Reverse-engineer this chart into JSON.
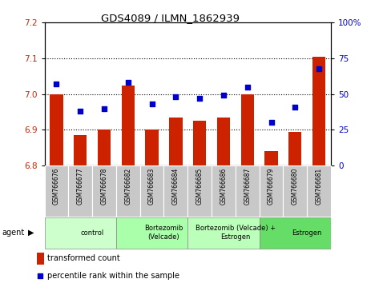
{
  "title": "GDS4089 / ILMN_1862939",
  "samples": [
    "GSM766676",
    "GSM766677",
    "GSM766678",
    "GSM766682",
    "GSM766683",
    "GSM766684",
    "GSM766685",
    "GSM766686",
    "GSM766687",
    "GSM766679",
    "GSM766680",
    "GSM766681"
  ],
  "bar_values": [
    7.0,
    6.885,
    6.9,
    7.025,
    6.9,
    6.935,
    6.925,
    6.935,
    7.0,
    6.84,
    6.895,
    7.105
  ],
  "dot_values": [
    57,
    38,
    40,
    58,
    43,
    48,
    47,
    49,
    55,
    30,
    41,
    68
  ],
  "bar_color": "#cc2200",
  "dot_color": "#0000cc",
  "ylim_left": [
    6.8,
    7.2
  ],
  "ylim_right": [
    0,
    100
  ],
  "yticks_left": [
    6.8,
    6.9,
    7.0,
    7.1,
    7.2
  ],
  "yticks_right": [
    0,
    25,
    50,
    75,
    100
  ],
  "ytick_labels_right": [
    "0",
    "25",
    "50",
    "75",
    "100%"
  ],
  "groups": [
    {
      "label": "control",
      "start": 0,
      "end": 3,
      "color": "#ccffcc"
    },
    {
      "label": "Bortezomib\n(Velcade)",
      "start": 3,
      "end": 6,
      "color": "#aaffaa"
    },
    {
      "label": "Bortezomib (Velcade) +\nEstrogen",
      "start": 6,
      "end": 9,
      "color": "#bbffbb"
    },
    {
      "label": "Estrogen",
      "start": 9,
      "end": 12,
      "color": "#66dd66"
    }
  ],
  "legend_bar_label": "transformed count",
  "legend_dot_label": "percentile rank within the sample",
  "sample_bg": "#c8c8c8",
  "plot_bg": "white"
}
